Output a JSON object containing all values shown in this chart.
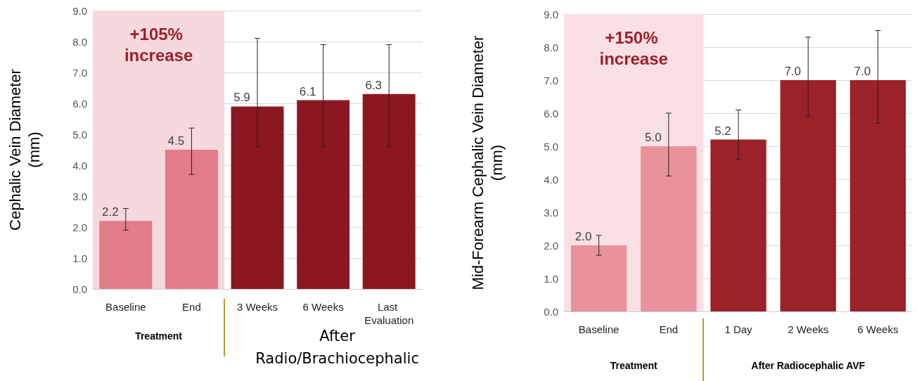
{
  "chart_data": [
    {
      "type": "bar",
      "ylabel": "Cephalic Vein Diameter\n(mm)",
      "categories": [
        "Baseline",
        "End",
        "3 Weeks",
        "6 Weeks",
        "Last Evaluation"
      ],
      "values": [
        2.2,
        4.5,
        5.9,
        6.1,
        6.3
      ],
      "colors": [
        "#e27c89",
        "#e27c89",
        "#8b1720",
        "#8b1720",
        "#8b1720"
      ],
      "errors": [
        [
          1.9,
          2.6
        ],
        [
          3.7,
          5.2
        ],
        [
          4.6,
          8.1
        ],
        [
          4.6,
          7.9
        ],
        [
          4.6,
          7.9
        ]
      ],
      "value_labels": [
        "2.2",
        "4.5",
        "5.9",
        "6.1",
        "6.3"
      ],
      "ylim": [
        0,
        9
      ],
      "yticks": [
        {
          "value": 0,
          "label": "0.0"
        },
        {
          "value": 1,
          "label": "1.0"
        },
        {
          "value": 2,
          "label": "2.0"
        },
        {
          "value": 3,
          "label": "3.0"
        },
        {
          "value": 4,
          "label": "4.0"
        },
        {
          "value": 5,
          "label": "5.0"
        },
        {
          "value": 6,
          "label": "6.0"
        },
        {
          "value": 7,
          "label": "7.0"
        },
        {
          "value": 8,
          "label": "8.0"
        },
        {
          "value": 9,
          "label": "9.0"
        }
      ],
      "grid": "y",
      "bands": [
        {
          "axis": "x",
          "from": "Baseline",
          "to": "End",
          "label": "+105% increase",
          "color": "#f6d9dd"
        }
      ],
      "annotations": [
        "Treatment",
        "After Radio/Brachiocephalic"
      ]
    },
    {
      "type": "bar",
      "ylabel": "Mid-Forearm Cephalic Vein Diameter\n(mm)",
      "categories": [
        "Baseline",
        "End",
        "1 Day",
        "2 Weeks",
        "6 Weeks"
      ],
      "values": [
        2.0,
        5.0,
        5.2,
        7.0,
        7.0
      ],
      "colors": [
        "#e8929b",
        "#e8929b",
        "#9b2228",
        "#9b2228",
        "#9b2228"
      ],
      "errors": [
        [
          1.7,
          2.3
        ],
        [
          4.1,
          6.0
        ],
        [
          4.6,
          6.1
        ],
        [
          5.9,
          8.3
        ],
        [
          5.7,
          8.5
        ]
      ],
      "value_labels": [
        "2.0",
        "5.0",
        "5.2",
        "7.0",
        "7.0"
      ],
      "ylim": [
        0,
        9
      ],
      "yticks": [
        {
          "value": 0,
          "label": "0.0"
        },
        {
          "value": 1,
          "label": "1.0"
        },
        {
          "value": 2,
          "label": "2.0"
        },
        {
          "value": 3,
          "label": "3.0"
        },
        {
          "value": 4,
          "label": "4.0"
        },
        {
          "value": 5,
          "label": "5.0"
        },
        {
          "value": 6,
          "label": "6.0"
        },
        {
          "value": 7,
          "label": "7.0"
        },
        {
          "value": 8,
          "label": "8.0"
        },
        {
          "value": 9,
          "label": "9.0"
        }
      ],
      "grid": "y",
      "bands": [
        {
          "axis": "x",
          "from": "Baseline",
          "to": "End",
          "label": "+150% increase",
          "color": "#f8e0e4"
        }
      ],
      "annotations": [
        "Treatment",
        "After Radiocephalic AVF"
      ]
    }
  ]
}
